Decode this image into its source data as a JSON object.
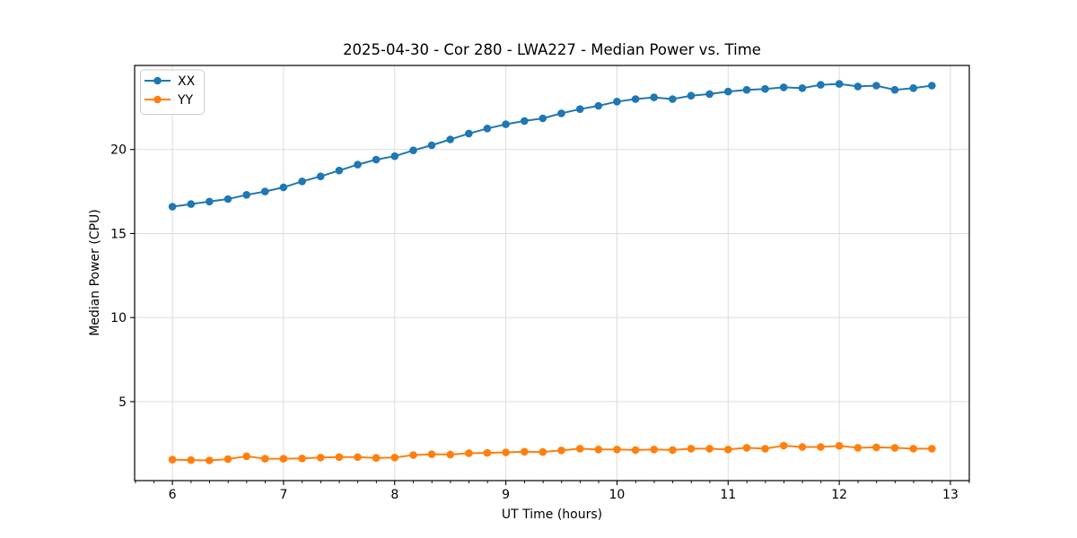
{
  "figure": {
    "background": "#ffffff",
    "frame_color": "#000000",
    "grid_color": "#dcdcdc"
  },
  "chart_data": {
    "type": "line",
    "title": "2025-04-30 - Cor 280 - LWA227 - Median Power vs. Time",
    "xlabel": "UT Time (hours)",
    "ylabel": "Median Power (CPU)",
    "xlim": [
      5.66,
      13.17
    ],
    "ylim": [
      0.3,
      25.0
    ],
    "xticks": [
      6,
      7,
      8,
      9,
      10,
      11,
      12,
      13
    ],
    "yticks": [
      5,
      10,
      15,
      20
    ],
    "x_minor_tick_step": 0.1667,
    "grid": true,
    "legend_position": "upper-left",
    "marker": "circle",
    "x": [
      6,
      6.167,
      6.333,
      6.5,
      6.667,
      6.833,
      7,
      7.167,
      7.333,
      7.5,
      7.667,
      7.833,
      8,
      8.167,
      8.333,
      8.5,
      8.667,
      8.833,
      9,
      9.167,
      9.333,
      9.5,
      9.667,
      9.833,
      10,
      10.167,
      10.333,
      10.5,
      10.667,
      10.833,
      11,
      11.167,
      11.333,
      11.5,
      11.667,
      11.833,
      12,
      12.167,
      12.333,
      12.5,
      12.667,
      12.833
    ],
    "series": [
      {
        "name": "XX",
        "color": "#1f77b4",
        "values": [
          16.6,
          16.75,
          16.9,
          17.05,
          17.3,
          17.5,
          17.75,
          18.1,
          18.4,
          18.75,
          19.1,
          19.4,
          19.6,
          19.95,
          20.25,
          20.6,
          20.95,
          21.25,
          21.5,
          21.7,
          21.85,
          22.15,
          22.4,
          22.6,
          22.85,
          23.0,
          23.1,
          23.0,
          23.2,
          23.3,
          23.45,
          23.55,
          23.6,
          23.7,
          23.65,
          23.85,
          23.9,
          23.75,
          23.8,
          23.55,
          23.65,
          23.8
        ]
      },
      {
        "name": "YY",
        "color": "#ff7f0e",
        "values": [
          1.55,
          1.52,
          1.5,
          1.58,
          1.75,
          1.6,
          1.6,
          1.62,
          1.67,
          1.7,
          1.7,
          1.65,
          1.67,
          1.82,
          1.87,
          1.85,
          1.93,
          1.95,
          1.98,
          2.02,
          2.0,
          2.1,
          2.2,
          2.15,
          2.15,
          2.12,
          2.15,
          2.12,
          2.2,
          2.2,
          2.15,
          2.25,
          2.2,
          2.38,
          2.3,
          2.3,
          2.37,
          2.25,
          2.28,
          2.25,
          2.2,
          2.2
        ]
      }
    ]
  }
}
